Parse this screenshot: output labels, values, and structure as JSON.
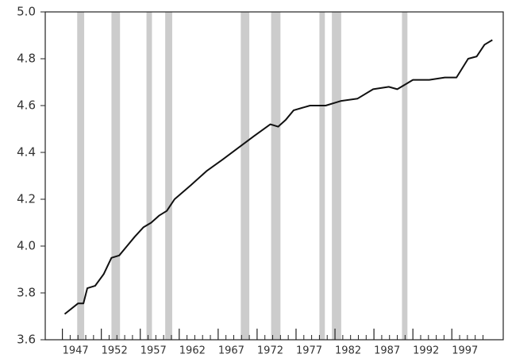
{
  "chart_data": {
    "type": "line",
    "x": [
      1947.3,
      1949,
      1949.7,
      1950.2,
      1951.2,
      1952.3,
      1953.3,
      1954.3,
      1955.3,
      1956.3,
      1957.4,
      1958.4,
      1959.4,
      1960.4,
      1961.4,
      1963.5,
      1965.5,
      1967.6,
      1969.6,
      1971.6,
      1973.7,
      1974.7,
      1975.7,
      1976.7,
      1978.8,
      1980.8,
      1982.8,
      1984.9,
      1986.9,
      1988.9,
      1990,
      1992,
      1994.1,
      1996.1,
      1997.6,
      1999.1,
      2000.2,
      2001.2,
      2002.2
    ],
    "series": [
      {
        "color": "#111111",
        "values": [
          3.71,
          3.755,
          3.755,
          3.82,
          3.83,
          3.88,
          3.95,
          3.96,
          4.0,
          4.04,
          4.08,
          4.1,
          4.13,
          4.15,
          4.2,
          4.26,
          4.32,
          4.37,
          4.42,
          4.47,
          4.52,
          4.51,
          4.54,
          4.58,
          4.6,
          4.6,
          4.62,
          4.63,
          4.67,
          4.68,
          4.67,
          4.71,
          4.71,
          4.72,
          4.72,
          4.8,
          4.81,
          4.86,
          4.88
        ]
      }
    ],
    "shaded_periods": [
      [
        1948.9,
        1949.8
      ],
      [
        1953.3,
        1954.4
      ],
      [
        1957.8,
        1958.5
      ],
      [
        1960.2,
        1961.1
      ],
      [
        1969.9,
        1971.0
      ],
      [
        1973.8,
        1975.0
      ],
      [
        1980.0,
        1980.7
      ],
      [
        1981.6,
        1982.8
      ],
      [
        1990.6,
        1991.3
      ]
    ],
    "shade_color": "#cccccc",
    "xlim": [
      1944.8,
      2003.6
    ],
    "xticks": [
      1947,
      1952,
      1957,
      1962,
      1967,
      1972,
      1977,
      1982,
      1987,
      1992,
      1997
    ],
    "ylim": [
      3.6,
      5.0
    ],
    "yticks": [
      3.6,
      3.8,
      {
        "value": 4.0,
        "label": "4.0"
      },
      4.2,
      4.4,
      4.6,
      4.8,
      {
        "value": 5.0,
        "label": "5.0"
      }
    ]
  }
}
